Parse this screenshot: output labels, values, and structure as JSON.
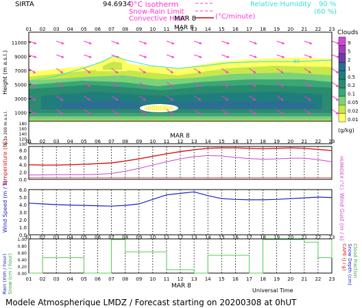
{
  "header": {
    "site": "SIRTA",
    "coords": "94.6934",
    "isotherm_label": "0°C isotherm",
    "snowrain_label": "Snow-Rain Limit",
    "convective_label": "Convective Heat",
    "convective_unit": "(°C/minute)",
    "rh_label": "Relative Humidity",
    "rh90": "90 %",
    "rh60": "(60 %)"
  },
  "hours": [
    "01",
    "02",
    "03",
    "04",
    "05",
    "06",
    "07",
    "08",
    "09",
    "10",
    "11",
    "12",
    "13",
    "14",
    "15",
    "16",
    "17",
    "18",
    "19",
    "20",
    "21",
    "22",
    "23"
  ],
  "date_label": "MAR  8",
  "footer": {
    "universal_time": "Universal Time",
    "title": "Modele Atmospherique LMDZ / Forecast starting on 20200308 at 0hUT"
  },
  "clouds_legend": {
    "title": "Clouds",
    "unit": "(g/kg)",
    "levels": [
      "0.01",
      "0.02",
      "0.05",
      "0.1",
      "0.2",
      "0.5",
      "1",
      "2",
      "5",
      "9"
    ],
    "colors": [
      "#ffff66",
      "#c6e84a",
      "#7cd27b",
      "#3aa874",
      "#2a8c6e",
      "#1f7e7c",
      "#2a6e94",
      "#6a3ea6",
      "#a13fb8",
      "#cf48d6"
    ]
  },
  "charts": {
    "height": {
      "ylabel": "Height (m a.s.l.)",
      "ylabel_low": "Up to 200 m a.s.l.",
      "ticks_upper": [
        "11000",
        "9000",
        "7000",
        "5000",
        "3000",
        "1000"
      ],
      "ticks_lower": [
        "180",
        "160",
        "140",
        "120",
        "100"
      ],
      "iso_value": "60"
    },
    "temperature": {
      "ylabel_left": "Temperature (°C)",
      "ylabel_right": "HUMIDEX (°C)",
      "ticks": [
        "8.0",
        "6.0",
        "4.0",
        "2.0",
        "0.0"
      ],
      "ylim": [
        0,
        9
      ],
      "temperature": [
        4.0,
        3.9,
        3.9,
        4.0,
        4.1,
        4.3,
        4.5,
        5.0,
        5.6,
        6.3,
        7.0,
        7.6,
        8.1,
        8.5,
        8.6,
        8.6,
        8.5,
        8.4,
        8.5,
        8.6,
        8.5,
        8.2,
        7.9
      ],
      "humidex": [
        1.2,
        1.2,
        1.3,
        1.3,
        1.3,
        1.4,
        1.6,
        2.2,
        3.0,
        3.9,
        4.8,
        5.6,
        6.2,
        6.5,
        6.4,
        6.0,
        5.7,
        5.5,
        5.6,
        5.8,
        5.8,
        5.4,
        4.8
      ],
      "temp_color": "#dd1111",
      "humidex_color": "#cc44cc"
    },
    "wind": {
      "ylabel_left": "Wind Speed (m / s)",
      "ylabel_right": "Wind Gust (m / s)",
      "ticks": [
        "6.0",
        "5.0",
        "4.0",
        "3.0",
        "2.0",
        "1.0",
        "0.0"
      ],
      "ylim": [
        0,
        6
      ],
      "speed": [
        4.2,
        4.1,
        4.0,
        3.95,
        3.9,
        3.85,
        3.8,
        3.9,
        4.1,
        4.7,
        5.3,
        5.5,
        5.7,
        5.2,
        4.8,
        4.7,
        4.65,
        4.65,
        4.7,
        4.8,
        4.9,
        5.0,
        4.95
      ],
      "color": "#1a1acc"
    },
    "rain": {
      "ylabel_left1": "Rain (mm / hour)",
      "ylabel_left2": "Snow (cm / hour)",
      "ylabel_right1": "Snow Depth (cm)",
      "ylabel_right2": "Cloud Fraction",
      "ylabel_right3": "CAPE (J / g)",
      "ticks": [
        "1.00",
        "0.80",
        "0.60",
        "0.40",
        "0.20",
        "0.00"
      ],
      "ylim": [
        0,
        1
      ],
      "cloud_fraction": [
        0.0,
        0.45,
        0.45,
        0.45,
        0.0,
        0.0,
        0.98,
        0.62,
        0.62,
        0.62,
        0.1,
        0.1,
        0.0,
        0.52,
        0.52,
        0.52,
        0.0,
        0.98,
        0.98,
        0.98,
        0.9,
        0.45,
        0.98
      ],
      "color": "#55cc55"
    }
  }
}
